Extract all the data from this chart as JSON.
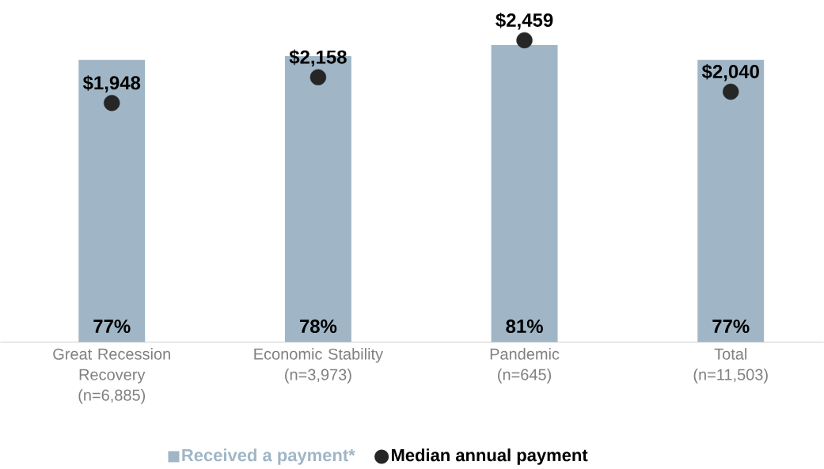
{
  "chart_data": {
    "type": "bar",
    "categories": [
      "Great Recession Recovery (n=6,885)",
      "Economic Stability (n=3,973)",
      "Pandemic (n=645)",
      "Total (n=11,503)"
    ],
    "series": [
      {
        "name": "Received a payment*",
        "color": "#a0b6c6",
        "values": [
          77,
          78,
          81,
          77
        ],
        "value_labels": [
          "77%",
          "78%",
          "81%",
          "77%"
        ]
      },
      {
        "name": "Median annual payment",
        "type": "scatter",
        "axis": "y2",
        "color": "#262626",
        "values": [
          1948,
          2158,
          2459,
          2040
        ],
        "value_labels": [
          "$1,948",
          "$2,158",
          "$2,459",
          "$2,040"
        ]
      }
    ],
    "tick_labels": "x",
    "legend": "bottom",
    "marker": "circle"
  }
}
